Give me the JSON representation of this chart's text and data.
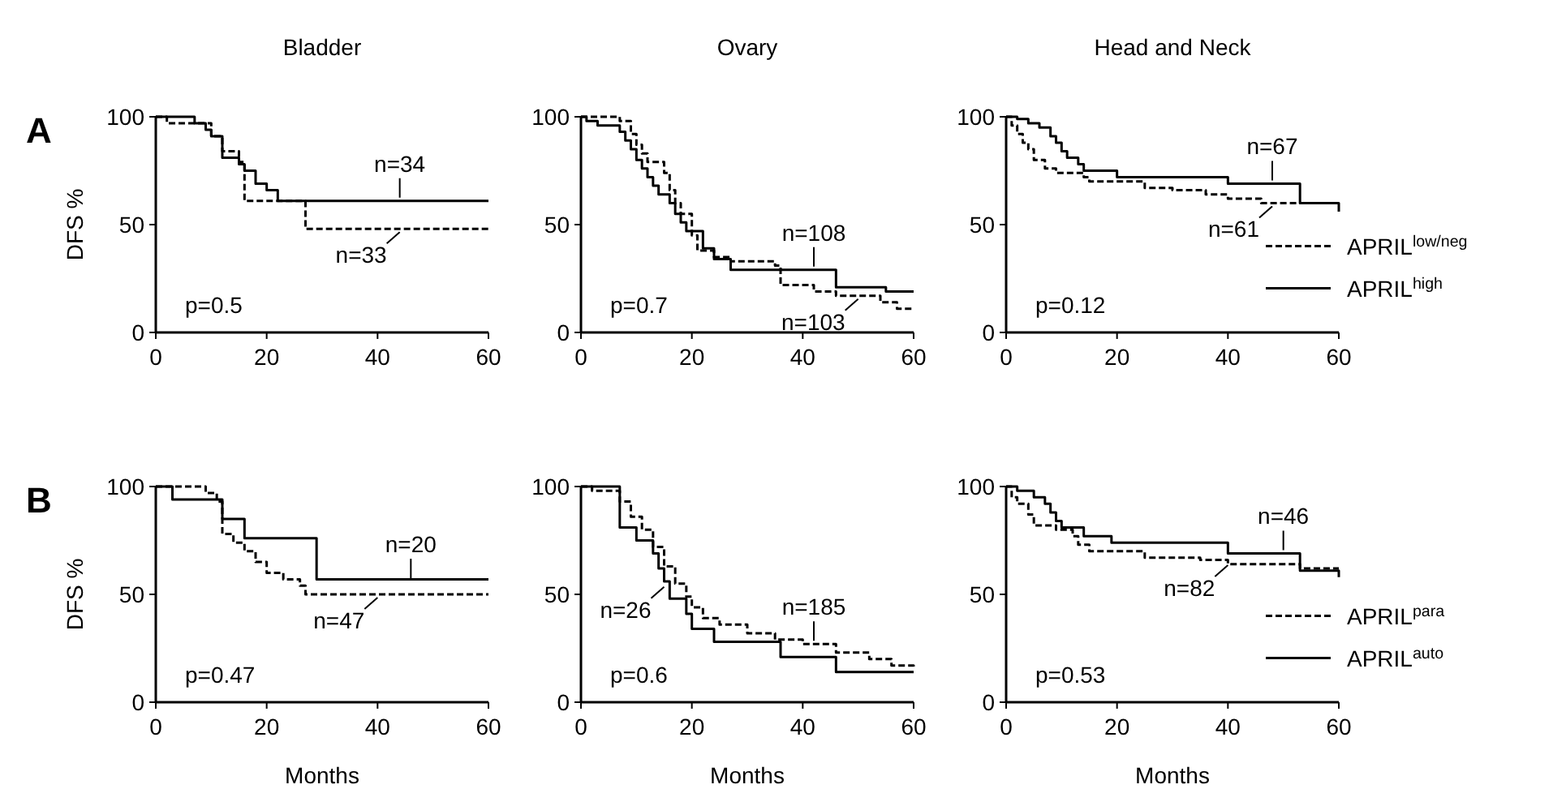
{
  "chart_data": [
    {
      "type": "step",
      "title": "Bladder",
      "ylabel": "DFS %",
      "annotations": [
        "A",
        "p=0.5",
        {
          "text": "n=34",
          "x": 44,
          "y": 61
        },
        {
          "text": "n=33",
          "x": 44,
          "y": 48
        }
      ],
      "xlim": [
        0,
        60
      ],
      "ylim": [
        0,
        100
      ],
      "xticks": [
        0,
        20,
        40,
        60
      ],
      "yticks": [
        0,
        50,
        100
      ],
      "grid": false,
      "legend": false,
      "series": [
        {
          "color": "#000000",
          "line_style": "dashed",
          "x": [
            0,
            2,
            10,
            12,
            15,
            16,
            27,
            60
          ],
          "values": [
            100,
            97,
            91,
            84,
            79,
            61,
            48,
            48
          ]
        },
        {
          "color": "#000000",
          "line_style": "solid",
          "x": [
            0,
            7,
            9,
            10,
            12,
            15,
            16,
            18,
            20,
            22,
            60
          ],
          "values": [
            100,
            97,
            94,
            91,
            81,
            78,
            75,
            69,
            66,
            61,
            61
          ]
        }
      ]
    },
    {
      "type": "step",
      "title": "Ovary",
      "annotations": [
        "p=0.7",
        {
          "text": "n=108",
          "x": 42,
          "y": 29
        },
        {
          "text": "n=103",
          "x": 50,
          "y": 17
        }
      ],
      "xlim": [
        0,
        60
      ],
      "ylim": [
        0,
        100
      ],
      "xticks": [
        0,
        20,
        40,
        60
      ],
      "yticks": [
        0,
        50,
        100
      ],
      "grid": false,
      "legend": false,
      "series": [
        {
          "color": "#000000",
          "line_style": "dashed",
          "x": [
            0,
            7,
            9,
            10,
            11,
            12,
            15,
            16,
            17,
            18,
            20,
            21,
            24,
            27,
            35,
            36,
            42,
            46,
            54,
            57,
            60
          ],
          "values": [
            100,
            98,
            92,
            87,
            83,
            79,
            74,
            66,
            60,
            55,
            45,
            38,
            35,
            33,
            31,
            22,
            19,
            17,
            14,
            11,
            11
          ]
        },
        {
          "color": "#000000",
          "line_style": "solid",
          "x": [
            0,
            1,
            3,
            7,
            8,
            9,
            10,
            11,
            12,
            13,
            14,
            16,
            17,
            18,
            19,
            22,
            24,
            27,
            36,
            46,
            55,
            60
          ],
          "values": [
            100,
            98,
            96,
            93,
            89,
            85,
            80,
            76,
            72,
            68,
            64,
            60,
            55,
            51,
            47,
            39,
            34,
            29,
            29,
            21,
            19,
            19
          ]
        }
      ]
    },
    {
      "type": "step",
      "title": "Head and Neck",
      "annotations": [
        "p=0.12",
        {
          "text": "n=67",
          "x": 48,
          "y": 69
        },
        {
          "text": "n=61",
          "x": 48,
          "y": 60
        }
      ],
      "xlim": [
        0,
        60
      ],
      "ylim": [
        0,
        100
      ],
      "xticks": [
        0,
        20,
        40,
        60
      ],
      "yticks": [
        0,
        50,
        100
      ],
      "grid": false,
      "legend": "right",
      "series": [
        {
          "name": "APRIL$^{low/neg}$",
          "color": "#000000",
          "line_style": "dashed",
          "x": [
            0,
            1,
            2,
            3,
            4,
            5,
            7,
            9,
            14,
            15,
            25,
            30,
            36,
            40,
            46,
            60
          ],
          "values": [
            100,
            96,
            92,
            88,
            85,
            80,
            76,
            74,
            72,
            70,
            67,
            66,
            64,
            62,
            60,
            60
          ]
        },
        {
          "name": "APRIL$^{high}$",
          "color": "#000000",
          "line_style": "solid",
          "x": [
            0,
            2,
            4,
            6,
            8,
            9,
            10,
            11,
            13,
            14,
            20,
            40,
            53,
            60
          ],
          "values": [
            100,
            99,
            97,
            95,
            91,
            88,
            84,
            81,
            78,
            75,
            72,
            69,
            60,
            56
          ]
        }
      ]
    },
    {
      "type": "step",
      "xlabel": "Months",
      "ylabel": "DFS %",
      "annotations": [
        "B",
        "p=0.47",
        {
          "text": "n=20",
          "x": 46,
          "y": 56
        },
        {
          "text": "n=47",
          "x": 40,
          "y": 50
        }
      ],
      "xlim": [
        0,
        60
      ],
      "ylim": [
        0,
        100
      ],
      "xticks": [
        0,
        20,
        40,
        60
      ],
      "yticks": [
        0,
        50,
        100
      ],
      "grid": false,
      "legend": false,
      "series": [
        {
          "color": "#000000",
          "line_style": "dashed",
          "x": [
            0,
            9,
            11,
            12,
            14,
            16,
            18,
            20,
            23,
            26,
            27,
            60
          ],
          "values": [
            100,
            97,
            93,
            78,
            74,
            70,
            65,
            60,
            57,
            54,
            50,
            50
          ]
        },
        {
          "color": "#000000",
          "line_style": "solid",
          "x": [
            0,
            3,
            12,
            16,
            29,
            60
          ],
          "values": [
            100,
            94,
            85,
            76,
            57,
            57
          ]
        }
      ]
    },
    {
      "type": "step",
      "xlabel": "Months",
      "annotations": [
        "p=0.6",
        {
          "text": "n=185",
          "x": 42,
          "y": 27
        },
        {
          "text": "n=26",
          "x": 15,
          "y": 55
        }
      ],
      "xlim": [
        0,
        60
      ],
      "ylim": [
        0,
        100
      ],
      "xticks": [
        0,
        20,
        40,
        60
      ],
      "yticks": [
        0,
        50,
        100
      ],
      "grid": false,
      "legend": false,
      "series": [
        {
          "color": "#000000",
          "line_style": "dashed",
          "x": [
            0,
            2,
            7,
            9,
            11,
            13,
            15,
            17,
            19,
            20,
            22,
            25,
            30,
            35,
            40,
            46,
            52,
            56,
            60
          ],
          "values": [
            100,
            98,
            93,
            86,
            80,
            72,
            63,
            55,
            49,
            44,
            39,
            36,
            32,
            29,
            27,
            23,
            20,
            17,
            16
          ]
        },
        {
          "color": "#000000",
          "line_style": "solid",
          "x": [
            0,
            7,
            10,
            13,
            14,
            15,
            16,
            19,
            20,
            24,
            36,
            46,
            60
          ],
          "values": [
            100,
            81,
            75,
            69,
            62,
            56,
            48,
            41,
            34,
            28,
            21,
            14,
            14
          ]
        }
      ]
    },
    {
      "type": "step",
      "xlabel": "Months",
      "annotations": [
        "p=0.53",
        {
          "text": "n=46",
          "x": 50,
          "y": 69
        },
        {
          "text": "n=82",
          "x": 40,
          "y": 65
        }
      ],
      "xlim": [
        0,
        60
      ],
      "ylim": [
        0,
        100
      ],
      "xticks": [
        0,
        20,
        40,
        60
      ],
      "yticks": [
        0,
        50,
        100
      ],
      "grid": false,
      "legend": "right",
      "series": [
        {
          "name": "APRIL$^{para}$",
          "color": "#000000",
          "line_style": "dashed",
          "x": [
            0,
            1,
            2,
            4,
            5,
            9,
            12,
            13,
            15,
            25,
            35,
            40,
            53,
            60
          ],
          "values": [
            100,
            95,
            92,
            87,
            82,
            80,
            77,
            73,
            70,
            67,
            66,
            64,
            62,
            62
          ]
        },
        {
          "name": "APRIL$^{auto}$",
          "color": "#000000",
          "line_style": "solid",
          "x": [
            0,
            2,
            5,
            7,
            8,
            9,
            10,
            14,
            19,
            40,
            53,
            60
          ],
          "values": [
            100,
            98,
            95,
            92,
            88,
            84,
            81,
            77,
            74,
            69,
            61,
            58
          ]
        }
      ]
    }
  ]
}
